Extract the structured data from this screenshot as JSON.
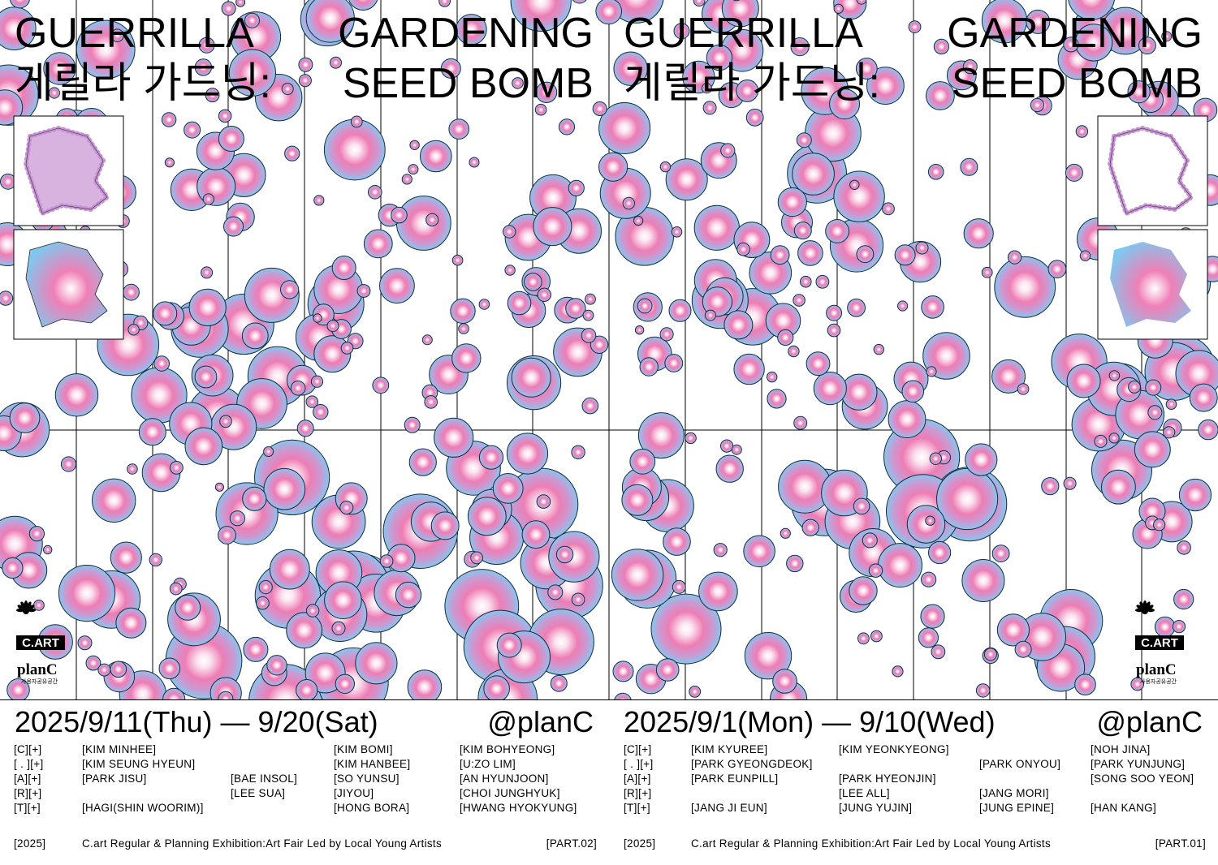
{
  "halves": [
    {
      "title_line1": [
        "GUERRILLA",
        "GARDENING"
      ],
      "title_line2": [
        "게릴라 가드닝:",
        "SEED BOMB"
      ],
      "dates": "2025/9/11(Thu) — 9/20(Sat)",
      "venue": "@planC",
      "credits": [
        [
          "[C][+]",
          "[KIM MINHEE]",
          null,
          "[KIM BOMI]",
          "[KIM BOHYEONG]"
        ],
        [
          "[ . ][+]",
          "[KIM SEUNG HYEUN]",
          null,
          "[KIM HANBEE]",
          "[U:ZO LIM]"
        ],
        [
          "[A][+]",
          "[PARK JISU]",
          "[BAE INSOL]",
          "[SO YUNSU]",
          "[AN HYUNJOON]"
        ],
        [
          "[R][+]",
          null,
          "[LEE SUA]",
          "[JIYOU]",
          "[CHOI JUNGHYUK]"
        ],
        [
          "[T][+]",
          "[HAGI(SHIN WOORIM)]",
          null,
          "[HONG BORA]",
          "[HWANG HYOKYUNG]"
        ]
      ],
      "footer": {
        "year": "[2025]",
        "text": "C.art Regular & Planning Exhibition:Art Fair Led by Local Young Artists",
        "part": "[PART.02]"
      }
    },
    {
      "title_line1": [
        "GUERRILLA",
        "GARDENING"
      ],
      "title_line2": [
        "게릴라 가드닝:",
        "SEED BOMB"
      ],
      "dates": "2025/9/1(Mon) — 9/10(Wed)",
      "venue": "@planC",
      "credits": [
        [
          "[C][+]",
          "[KIM KYUREE]",
          "[KIM YEONKYEONG]",
          null,
          "[NOH JINA]"
        ],
        [
          "[ . ][+]",
          "[PARK GYEONGDEOK]",
          null,
          "[PARK ONYOU]",
          "[PARK YUNJUNG]"
        ],
        [
          "[A][+]",
          "[PARK EUNPILL]",
          "[PARK HYEONJIN]",
          null,
          "[SONG SOO YEON]"
        ],
        [
          "[R][+]",
          null,
          "[LEE ALL]",
          "[JANG MORI]",
          null
        ],
        [
          "[T][+]",
          "[JANG JI EUN]",
          "[JUNG YUJIN]",
          "[JUNG EPINE]",
          "[HAN KANG]"
        ]
      ],
      "footer": {
        "year": "[2025]",
        "text": "C.art Regular & Planning Exhibition:Art Fair Led by Local Young Artists",
        "part": "[PART.01]"
      }
    }
  ],
  "logos": {
    "cart": "C.ART",
    "planc": "planC",
    "planc_sub": "사용자공유공간"
  }
}
